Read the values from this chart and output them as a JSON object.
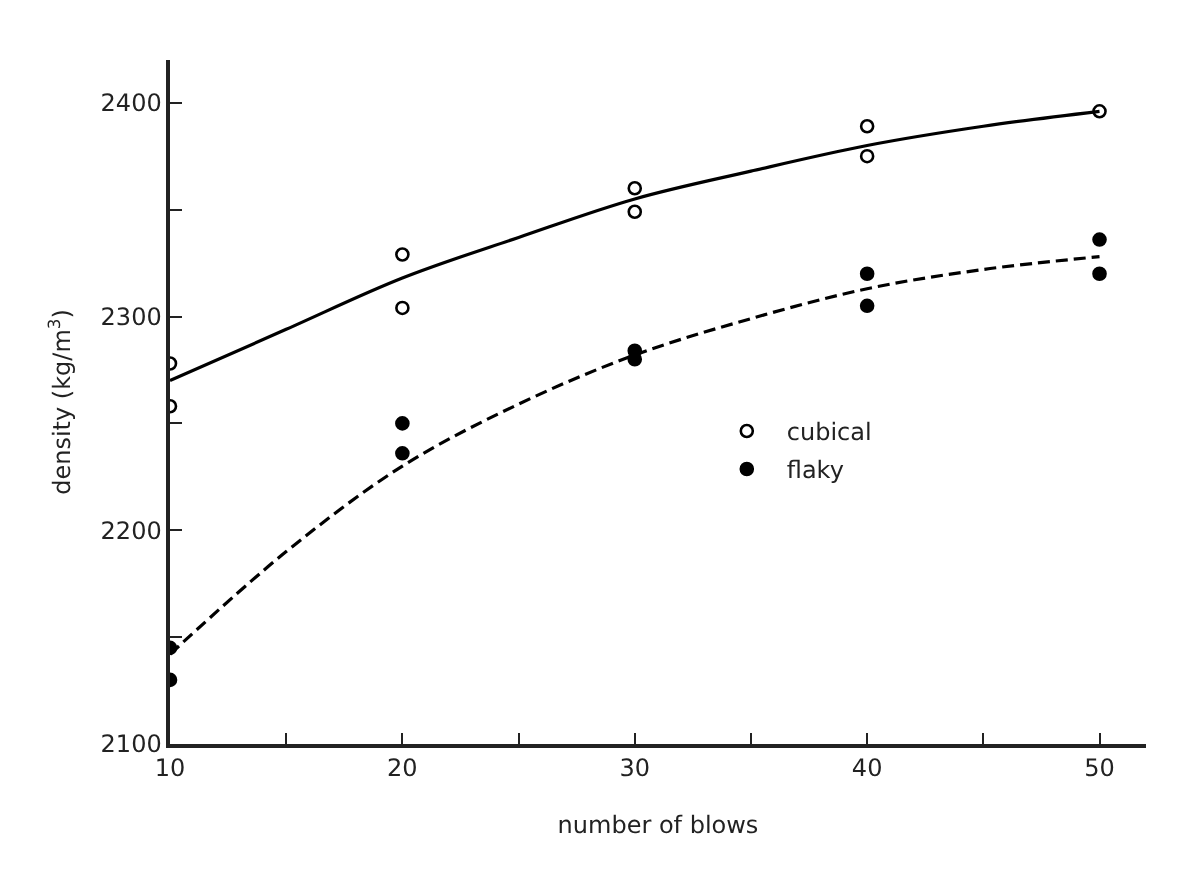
{
  "chart_data": {
    "type": "scatter",
    "xlabel": "number of blows",
    "ylabel": "density (kg/m$^{3}$)",
    "xlim": [
      10,
      52
    ],
    "xticks": [
      10,
      {
        "value": 15,
        "label": null
      },
      20,
      {
        "value": 25,
        "label": null
      },
      30,
      {
        "value": 35,
        "label": null
      },
      40,
      {
        "value": 45,
        "label": null
      },
      50
    ],
    "ylim": [
      2100,
      2420
    ],
    "yticks": [
      2100,
      {
        "value": 2150,
        "label": null
      },
      2200,
      {
        "value": 2250,
        "label": null
      },
      2300,
      {
        "value": 2350,
        "label": null
      },
      2400
    ],
    "legend": "right",
    "series": [
      {
        "name": "cubical",
        "marker": "circle",
        "color": "#000000",
        "x": [
          10,
          10,
          20,
          20,
          30,
          30,
          40,
          40,
          50
        ],
        "values": [
          2278,
          2258,
          2329,
          2304,
          2360,
          2349,
          2389,
          2375,
          2396
        ]
      },
      {
        "name": "flaky",
        "marker": "circle",
        "color": "#000000",
        "x": [
          10,
          10,
          20,
          20,
          30,
          30,
          40,
          40,
          50,
          50
        ],
        "values": [
          2145,
          2130,
          2250,
          2236,
          2284,
          2280,
          2320,
          2305,
          2336,
          2320
        ]
      },
      {
        "type": "line",
        "color": "#000000",
        "line_style": "solid",
        "marker": "none",
        "x": [
          10,
          15,
          20,
          25,
          30,
          35,
          40,
          45,
          50
        ],
        "values": [
          2270,
          2294,
          2318,
          2337,
          2355,
          2368,
          2380,
          2389,
          2396
        ]
      },
      {
        "type": "line",
        "color": "#000000",
        "line_style": "dashed",
        "marker": "none",
        "x": [
          10,
          15,
          20,
          25,
          30,
          35,
          40,
          45,
          50
        ],
        "values": [
          2142,
          2190,
          2230,
          2259,
          2282,
          2299,
          2313,
          2322,
          2328
        ]
      }
    ]
  }
}
